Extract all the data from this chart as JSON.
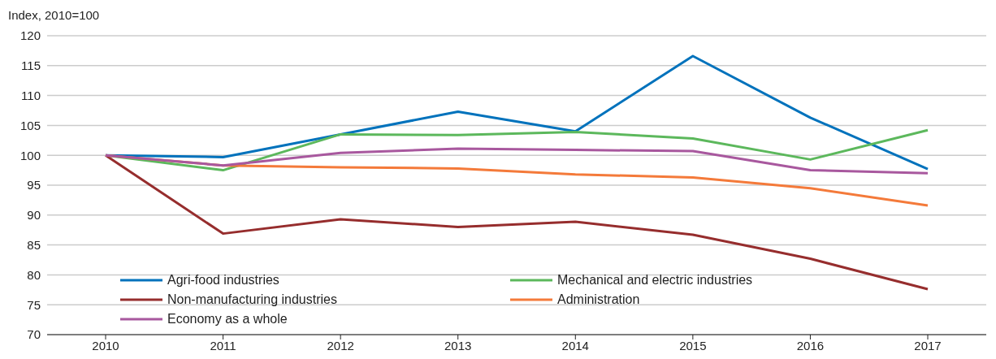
{
  "chart_data": {
    "type": "line",
    "ylabel": "Index, 2010=100",
    "categories": [
      "2010",
      "2011",
      "2012",
      "2013",
      "2014",
      "2015",
      "2016",
      "2017"
    ],
    "series": [
      {
        "name": "Agri-food industries",
        "color": "#0072bc",
        "values": [
          100,
          99.7,
          103.5,
          107.3,
          104,
          116.6,
          106.3,
          97.7
        ]
      },
      {
        "name": "Mechanical and electric industries",
        "color": "#5cb85c",
        "values": [
          100,
          97.5,
          103.5,
          103.4,
          103.9,
          102.8,
          99.3,
          104.2
        ]
      },
      {
        "name": "Non-manufacturing industries",
        "color": "#962d2d",
        "values": [
          100,
          86.9,
          89.3,
          88,
          88.9,
          86.7,
          82.7,
          77.6
        ]
      },
      {
        "name": "Administration",
        "color": "#f47a3a",
        "values": [
          100,
          98.3,
          98,
          97.8,
          96.8,
          96.3,
          94.5,
          91.6
        ]
      },
      {
        "name": "Economy as a whole",
        "color": "#a8589e",
        "values": [
          100,
          98.3,
          100.4,
          101.1,
          100.9,
          100.7,
          97.5,
          97
        ]
      }
    ],
    "ylim": [
      70,
      120
    ],
    "yticks": [
      70,
      75,
      80,
      85,
      90,
      95,
      100,
      105,
      110,
      115,
      120
    ],
    "grid": "y",
    "legend": "bottom left",
    "marker": "none",
    "line_style": "solid"
  }
}
